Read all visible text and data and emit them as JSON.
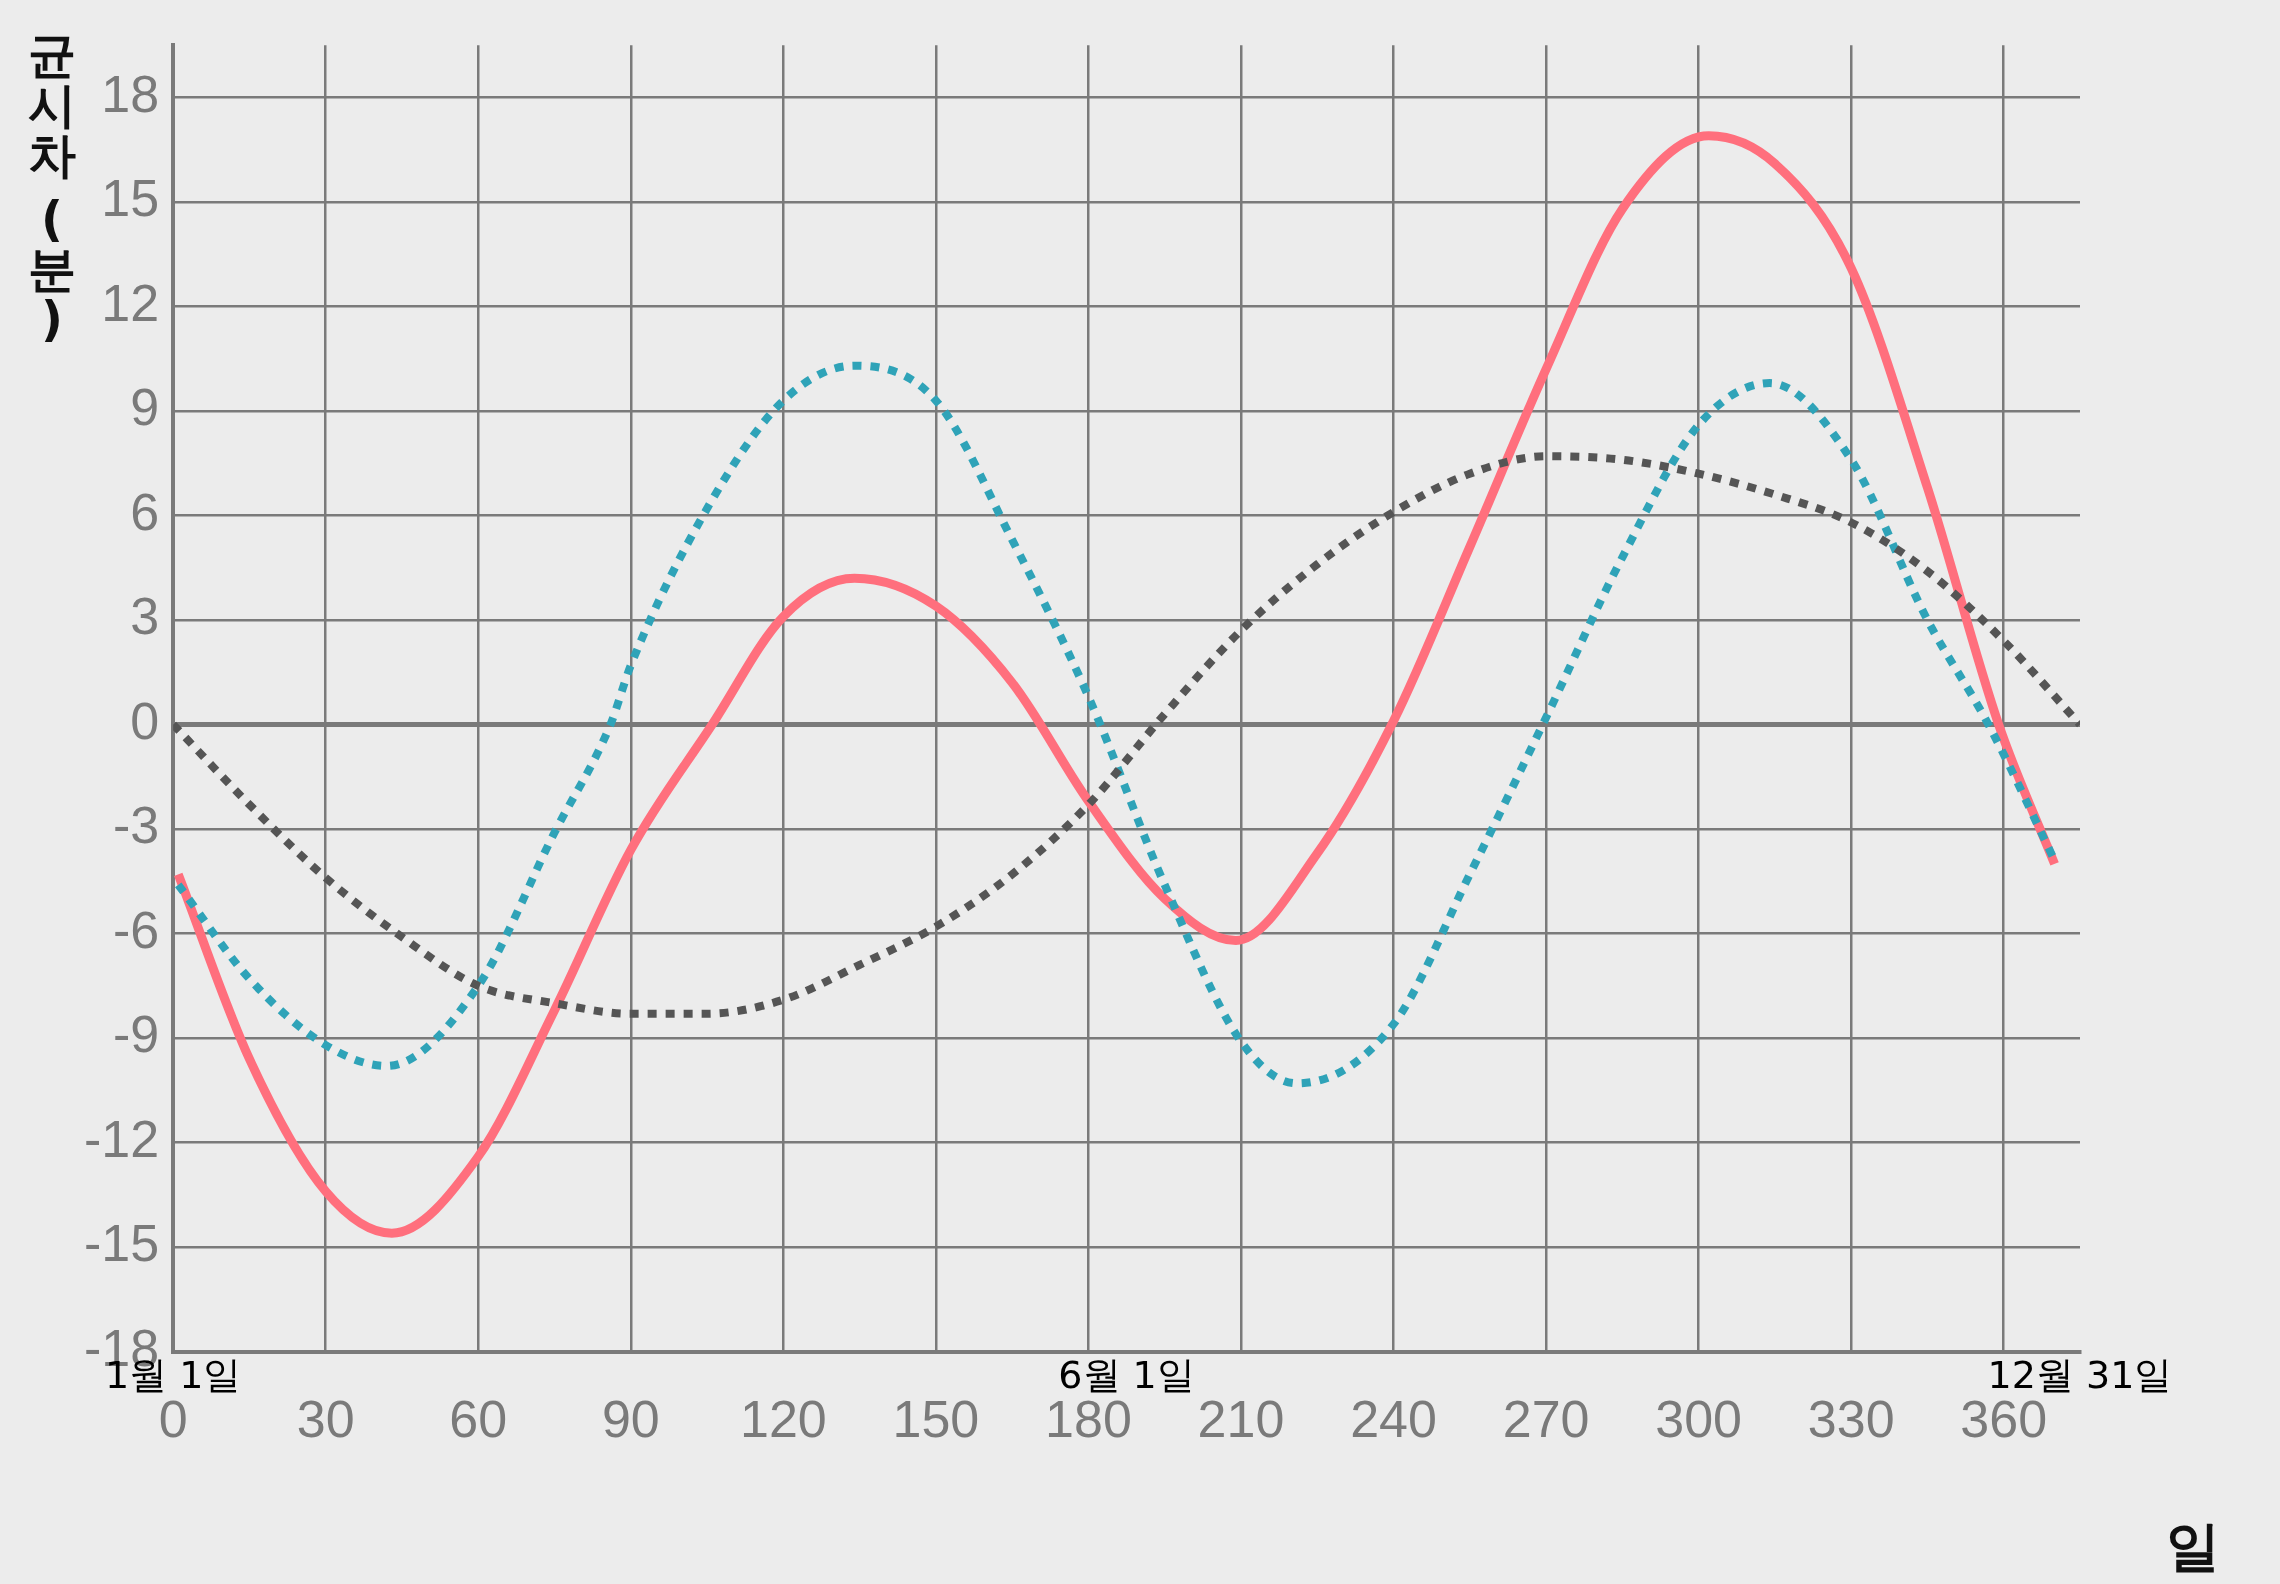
{
  "chart_data": {
    "type": "line",
    "xlabel": "일",
    "ylabel": "균시차 (분)",
    "xlim": [
      0,
      375
    ],
    "ylim": [
      -18,
      19.5
    ],
    "xticks": [
      0,
      30,
      60,
      90,
      120,
      150,
      180,
      210,
      240,
      270,
      300,
      330,
      360
    ],
    "yticks": [
      -18,
      -15,
      -12,
      -9,
      -6,
      -3,
      0,
      3,
      6,
      9,
      12,
      15,
      18
    ],
    "grid": true,
    "legend": false,
    "marker": "none",
    "annotations": [
      "1월 1일",
      "6월 1일",
      "12월 31일"
    ],
    "series": [
      {
        "color": "#555555",
        "line_style": "dotted",
        "x": [
          0,
          15,
          30,
          45,
          60,
          75,
          90,
          105,
          120,
          135,
          150,
          165,
          180,
          195,
          210,
          225,
          240,
          255,
          270,
          285,
          300,
          315,
          330,
          345,
          360,
          375
        ],
        "values": [
          0,
          -2.3,
          -4.4,
          -6.1,
          -7.5,
          -8.0,
          -8.3,
          -8.3,
          -7.9,
          -6.9,
          -5.8,
          -4.3,
          -2.3,
          0.3,
          2.7,
          4.6,
          6.1,
          7.2,
          7.7,
          7.6,
          7.2,
          6.6,
          5.8,
          4.4,
          2.4,
          0
        ]
      },
      {
        "color": "#2fa3b8",
        "line_style": "dotted",
        "x": [
          1,
          15,
          30,
          42,
          60,
          75,
          86,
          90,
          105,
          120,
          134,
          150,
          165,
          180,
          195,
          210,
          221,
          240,
          255,
          270,
          285,
          300,
          314,
          330,
          345,
          357,
          370
        ],
        "values": [
          -4.6,
          -7.3,
          -9.2,
          -9.8,
          -7.5,
          -3.1,
          0,
          1.7,
          6.2,
          9.3,
          10.3,
          9.3,
          5.3,
          0.8,
          -4.6,
          -9.1,
          -10.3,
          -8.6,
          -4.3,
          0.2,
          4.8,
          8.6,
          9.8,
          7.6,
          3.0,
          0,
          -3.9
        ]
      },
      {
        "color": "#ff6f7d",
        "line_style": "solid",
        "x": [
          1,
          15,
          30,
          43,
          60,
          75,
          90,
          106,
          120,
          134,
          150,
          165,
          180,
          195,
          209,
          225,
          240,
          255,
          270,
          285,
          302,
          315,
          330,
          345,
          359,
          370
        ],
        "values": [
          -4.3,
          -9.6,
          -13.4,
          -14.6,
          -12.4,
          -8.2,
          -3.6,
          0,
          3.1,
          4.2,
          3.4,
          1.2,
          -2.2,
          -5.0,
          -6.2,
          -3.7,
          0.1,
          5.1,
          10.2,
          14.8,
          16.9,
          16.1,
          13.1,
          6.8,
          0,
          -4.0
        ]
      }
    ]
  }
}
